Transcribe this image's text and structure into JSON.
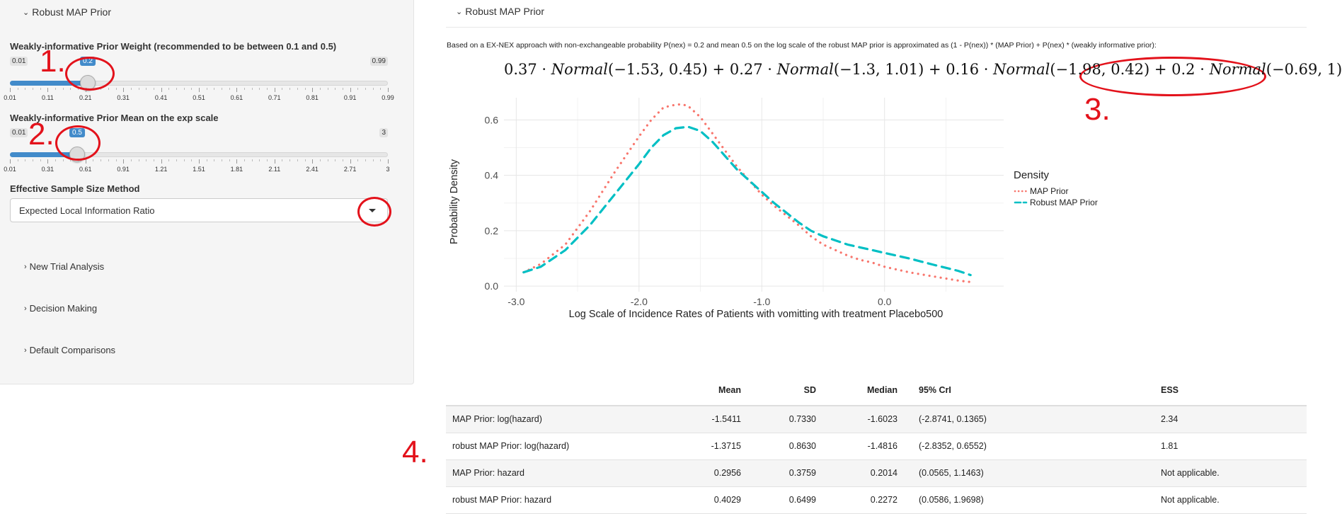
{
  "sidebar": {
    "header": "Robust MAP Prior",
    "weight_slider": {
      "label": "Weakly-informative Prior Weight (recommended to be between 0.1 and 0.5)",
      "min": "0.01",
      "max": "0.99",
      "value": "0.2",
      "tick_labels": [
        "0.01",
        "0.11",
        "0.21",
        "0.31",
        "0.41",
        "0.51",
        "0.61",
        "0.71",
        "0.81",
        "0.91",
        "0.99"
      ]
    },
    "mean_slider": {
      "label": "Weakly-informative Prior Mean on the exp scale",
      "min": "0.01",
      "max": "3",
      "value": "0.5",
      "tick_labels": [
        "0.01",
        "0.31",
        "0.61",
        "0.91",
        "1.21",
        "1.51",
        "1.81",
        "2.11",
        "2.41",
        "2.71",
        "3"
      ]
    },
    "ess_method": {
      "label": "Effective Sample Size Method",
      "selected": "Expected Local Information Ratio"
    },
    "collapsed_panels": [
      "New Trial Analysis",
      "Decision Making",
      "Default Comparisons"
    ]
  },
  "annotations": [
    "1.",
    "2.",
    "3.",
    "4."
  ],
  "main": {
    "header": "Robust MAP Prior",
    "description": "Based on a EX-NEX approach with non-exchangeable probability P(nex) = 0.2 and mean 0.5 on the log scale of the robust MAP prior is approximated as (1 - P(nex)) * (MAP Prior) + P(nex) * (weakly informative prior):",
    "formula": {
      "terms": [
        {
          "weight": "0.37",
          "dist": "Normal",
          "args": "(−1.53, 0.45)"
        },
        {
          "weight": "0.27",
          "dist": "Normal",
          "args": "(−1.3, 1.01)"
        },
        {
          "weight": "0.16",
          "dist": "Normal",
          "args": "(−1.98, 0.42)"
        },
        {
          "weight": "0.2",
          "dist": "Normal",
          "args": "(−0.69, 1)"
        }
      ],
      "dot": "·",
      "plus": "+"
    }
  },
  "chart_data": {
    "type": "line",
    "title": "",
    "xlabel": "Log Scale of Incidence Rates of Patients with vomitting with treatment Placebo500",
    "ylabel": "Probability Density",
    "xlim": [
      -3.1,
      0.97
    ],
    "ylim": [
      -0.02,
      0.68
    ],
    "x_ticks": [
      -3.0,
      -2.0,
      -1.0,
      0.0
    ],
    "x_tick_labels": [
      "-3.0",
      "-2.0",
      "-1.0",
      "0.0"
    ],
    "y_ticks": [
      0.0,
      0.2,
      0.4,
      0.6
    ],
    "y_tick_labels": [
      "0.0",
      "0.2",
      "0.4",
      "0.6"
    ],
    "grid": true,
    "legend_title": "Density",
    "legend_position": "right",
    "series": [
      {
        "name": "MAP Prior",
        "color": "#f8766d",
        "style": "dotted",
        "x": [
          -2.94,
          -2.8,
          -2.6,
          -2.4,
          -2.2,
          -2.0,
          -1.9,
          -1.8,
          -1.7,
          -1.65,
          -1.6,
          -1.5,
          -1.4,
          -1.3,
          -1.2,
          -1.1,
          -1.0,
          -0.9,
          -0.8,
          -0.7,
          -0.6,
          -0.5,
          -0.4,
          -0.3,
          -0.2,
          -0.1,
          0.0,
          0.2,
          0.4,
          0.6,
          0.7
        ],
        "y": [
          0.05,
          0.08,
          0.15,
          0.27,
          0.41,
          0.54,
          0.6,
          0.645,
          0.655,
          0.656,
          0.65,
          0.61,
          0.55,
          0.49,
          0.43,
          0.38,
          0.33,
          0.29,
          0.255,
          0.22,
          0.18,
          0.15,
          0.13,
          0.11,
          0.095,
          0.085,
          0.07,
          0.05,
          0.035,
          0.02,
          0.015
        ]
      },
      {
        "name": "Robust MAP Prior",
        "color": "#00bfc4",
        "style": "dashed",
        "x": [
          -2.94,
          -2.8,
          -2.6,
          -2.4,
          -2.2,
          -2.0,
          -1.9,
          -1.8,
          -1.7,
          -1.6,
          -1.5,
          -1.4,
          -1.3,
          -1.2,
          -1.1,
          -1.0,
          -0.9,
          -0.8,
          -0.7,
          -0.6,
          -0.5,
          -0.4,
          -0.3,
          -0.2,
          -0.1,
          0.0,
          0.2,
          0.4,
          0.6,
          0.7
        ],
        "y": [
          0.05,
          0.07,
          0.13,
          0.22,
          0.33,
          0.44,
          0.5,
          0.545,
          0.57,
          0.575,
          0.56,
          0.52,
          0.47,
          0.42,
          0.38,
          0.34,
          0.3,
          0.265,
          0.23,
          0.2,
          0.18,
          0.165,
          0.15,
          0.14,
          0.13,
          0.12,
          0.1,
          0.077,
          0.055,
          0.04
        ]
      }
    ]
  },
  "table": {
    "headers": [
      "",
      "Mean",
      "SD",
      "Median",
      "95% CrI",
      "ESS"
    ],
    "rows": [
      [
        "MAP Prior: log(hazard)",
        "-1.5411",
        "0.7330",
        "-1.6023",
        "(-2.8741, 0.1365)",
        "2.34"
      ],
      [
        "robust MAP Prior: log(hazard)",
        "-1.3715",
        "0.8630",
        "-1.4816",
        "(-2.8352, 0.6552)",
        "1.81"
      ],
      [
        "MAP Prior: hazard",
        "0.2956",
        "0.3759",
        "0.2014",
        "(0.0565, 1.1463)",
        "Not applicable."
      ],
      [
        "robust MAP Prior: hazard",
        "0.4029",
        "0.6499",
        "0.2272",
        "(0.0586, 1.9698)",
        "Not applicable."
      ]
    ]
  }
}
